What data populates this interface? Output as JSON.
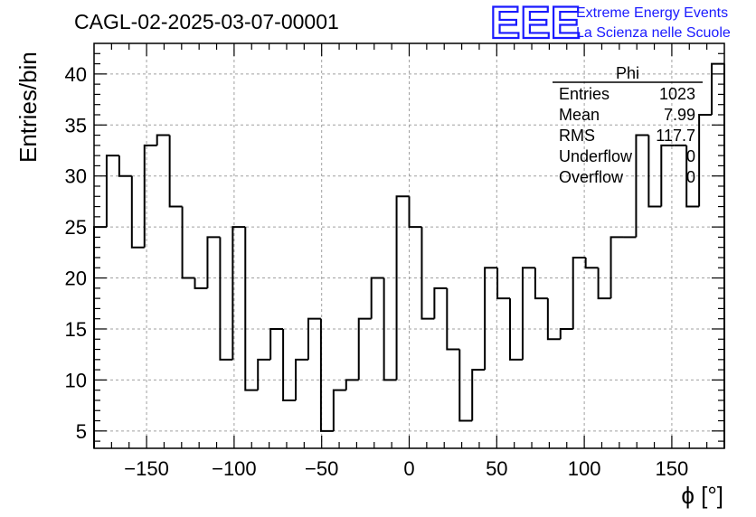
{
  "chart_data": {
    "type": "bar",
    "histogram": true,
    "title": "CAGL-02-2025-03-07-00001",
    "xlabel": "ϕ [°]",
    "ylabel": "Entries/bin",
    "xlim": [
      -180,
      180
    ],
    "ylim": [
      3.3,
      43
    ],
    "grid": true,
    "bin_width": 7.2,
    "x_ticks": [
      -150,
      -100,
      -50,
      0,
      50,
      100,
      150
    ],
    "x_tick_labels": [
      "−150",
      "−100",
      "−50",
      "0",
      "50",
      "100",
      "150"
    ],
    "y_ticks": [
      5,
      10,
      15,
      20,
      25,
      30,
      35,
      40
    ],
    "y_tick_labels": [
      "5",
      "10",
      "15",
      "20",
      "25",
      "30",
      "35",
      "40"
    ],
    "values": [
      25,
      32,
      30,
      23,
      33,
      34,
      27,
      20,
      19,
      24,
      12,
      25,
      9,
      12,
      15,
      8,
      12,
      16,
      5,
      9,
      10,
      16,
      20,
      10,
      28,
      25,
      16,
      19,
      13,
      6,
      11,
      21,
      18,
      12,
      21,
      18,
      14,
      15,
      22,
      21,
      18,
      24,
      24,
      34,
      27,
      33,
      33,
      27,
      36,
      41
    ]
  },
  "stats_box": {
    "name": "Phi",
    "rows": [
      {
        "label": "Entries",
        "value": "1023"
      },
      {
        "label": "Mean",
        "value": "7.99"
      },
      {
        "label": "RMS",
        "value": "117.7"
      },
      {
        "label": "Underflow",
        "value": "0"
      },
      {
        "label": "Overflow",
        "value": "0"
      }
    ]
  },
  "logo": {
    "mark": "EEE",
    "line1": "Extreme Energy Events",
    "line2": "La Scienza nelle Scuole",
    "color": "#1a1aff"
  }
}
